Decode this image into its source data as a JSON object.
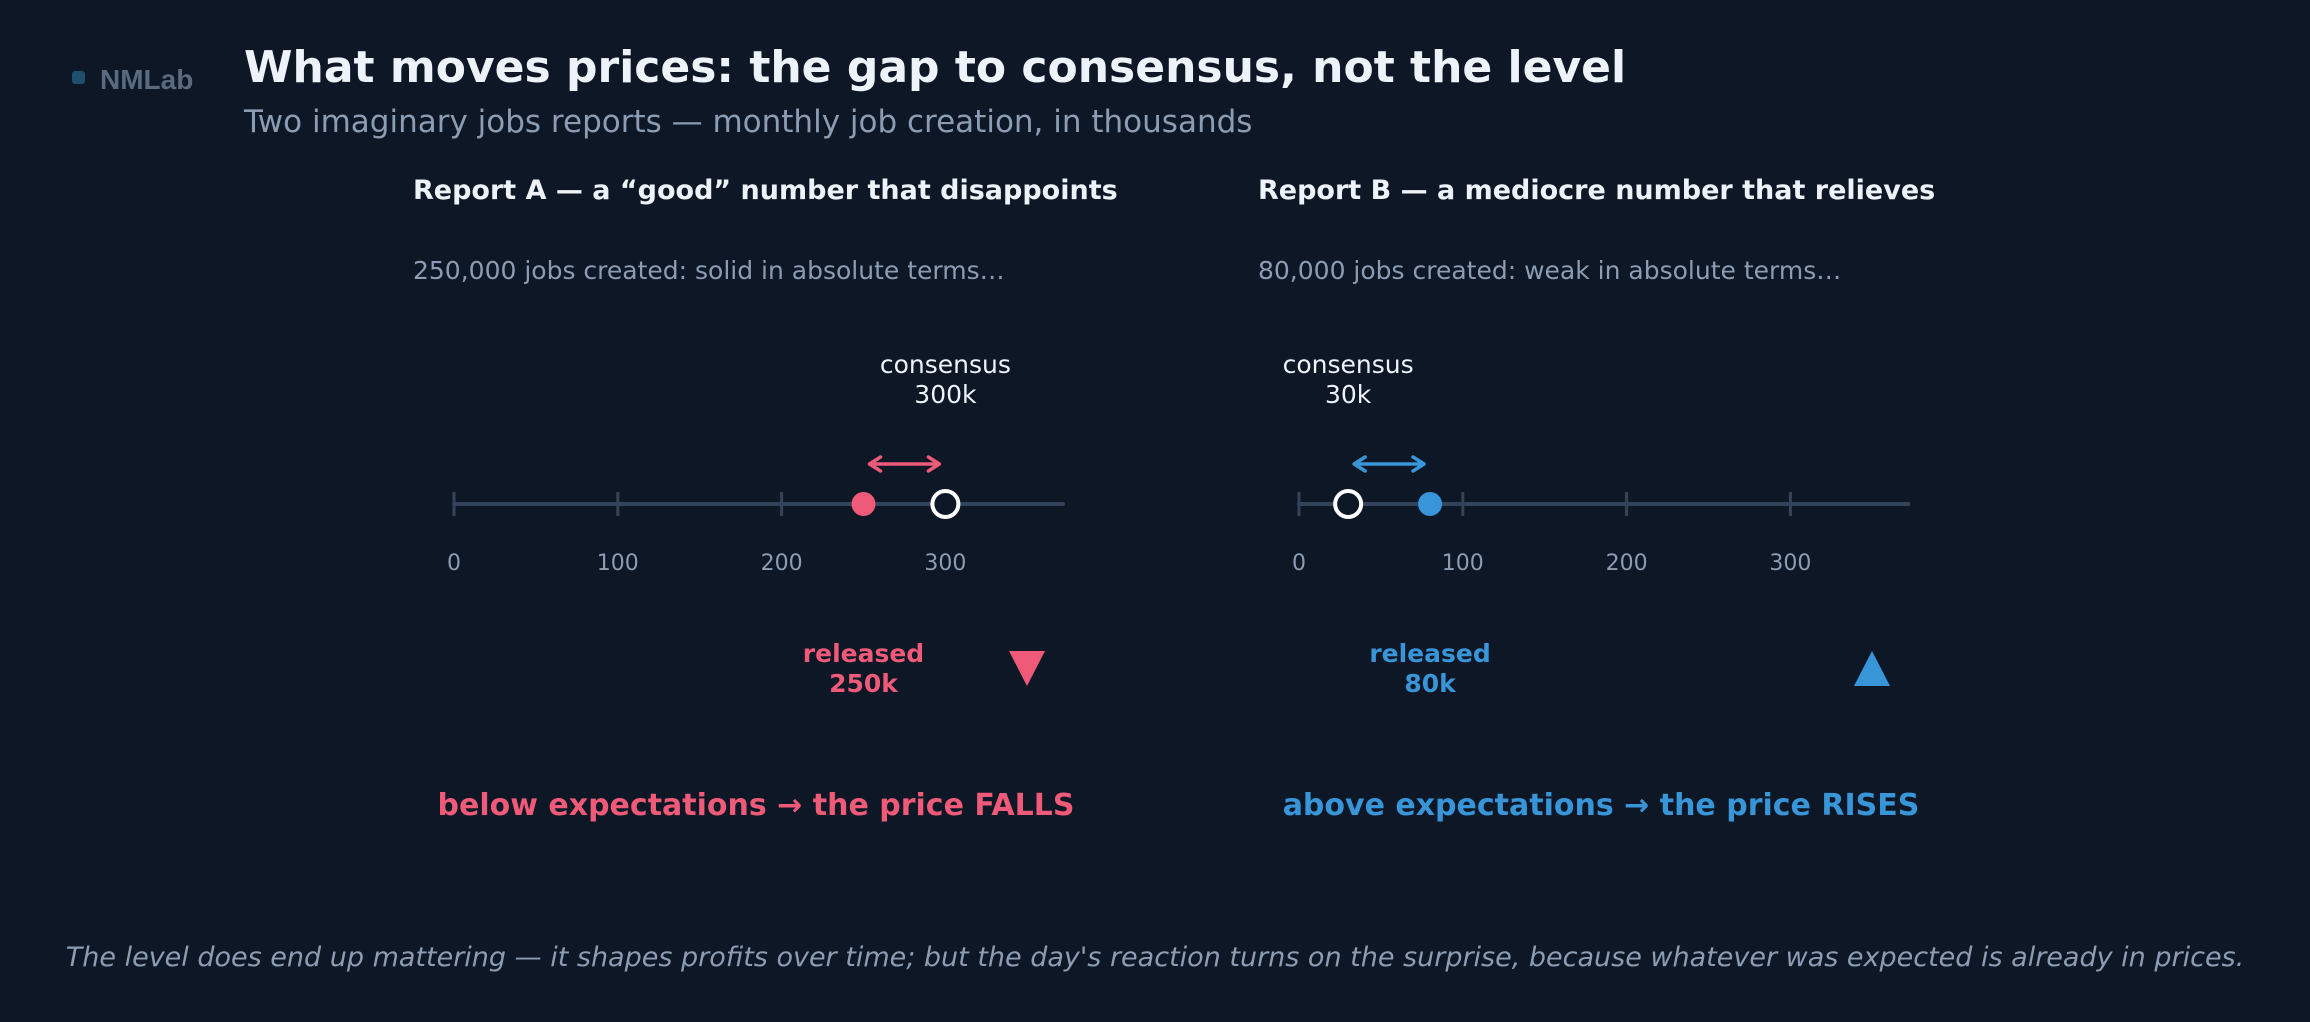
{
  "brand": {
    "name": "NMLab"
  },
  "header": {
    "title": "What moves prices: the gap to consensus, not the level",
    "subtitle": "Two imaginary jobs reports — monthly job creation, in thousands"
  },
  "colors": {
    "background": "#0d1726",
    "title": "#eef3fa",
    "muted": "#8c9db3",
    "axis": "#33435a",
    "down": "#ee5a78",
    "up": "#3795d8",
    "open_marker": "#ffffff"
  },
  "axis": {
    "min": 0,
    "max": 370,
    "ticks": [
      0,
      100,
      200,
      300
    ],
    "tick_labels": [
      "0",
      "100",
      "200",
      "300"
    ]
  },
  "reports": [
    {
      "id": "a",
      "title": "Report A — a “good” number that disappoints",
      "note": "250,000 jobs created: solid in absolute terms…",
      "consensus_value": 300,
      "consensus_label": "consensus",
      "consensus_value_label": "300k",
      "released_value": 250,
      "released_label": "released",
      "released_value_label": "250k",
      "direction": "down",
      "direction_icon": "down-triangle-icon",
      "verdict": "below expectations → the price FALLS"
    },
    {
      "id": "b",
      "title": "Report B — a mediocre number that relieves",
      "note": "80,000 jobs created: weak in absolute terms…",
      "consensus_value": 30,
      "consensus_label": "consensus",
      "consensus_value_label": "30k",
      "released_value": 80,
      "released_label": "released",
      "released_value_label": "80k",
      "direction": "up",
      "direction_icon": "up-triangle-icon",
      "verdict": "above expectations → the price RISES"
    }
  ],
  "footer": {
    "text": "The level does end up mattering — it shapes profits over time; but the day's reaction turns on the surprise, because whatever was expected is already in prices."
  }
}
